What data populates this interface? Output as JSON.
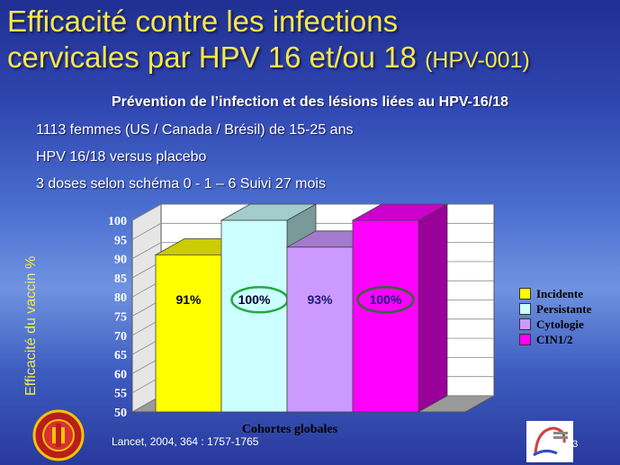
{
  "slide": {
    "title_line1": "Efficacité contre les infections",
    "title_line2": "cervicales par HPV 16 et/ou 18",
    "title_code": "(HPV-001)",
    "subtitle": "Prévention de l’infection et des lésions liées au HPV-16/18",
    "info": [
      "1113 femmes (US / Canada / Brésil) de 15-25 ans",
      "HPV 16/18 versus placebo",
      "3 doses selon schéma 0 - 1 – 6 Suivi 27 mois"
    ],
    "citation": "Lancet, 2004, 364 : 1757-1765",
    "page_number": "23"
  },
  "chart_data": {
    "type": "bar",
    "ylabel": "Efficacité du vaccin %",
    "xlabel": "Cohortes globales",
    "ylim": [
      50,
      100
    ],
    "yticks": [
      "50",
      "55",
      "60",
      "65",
      "70",
      "75",
      "80",
      "85",
      "90",
      "95",
      "100"
    ],
    "series": [
      {
        "name": "Incidente",
        "value": 91,
        "label": "91%",
        "color": "#ffff00",
        "circled": false
      },
      {
        "name": "Persistante",
        "value": 100,
        "label": "100%",
        "color": "#ccffff",
        "circled": true
      },
      {
        "name": "Cytologie",
        "value": 93,
        "label": "93%",
        "color": "#cc99ff",
        "circled": false
      },
      {
        "name": "CIN1/2",
        "value": 100,
        "label": "100%",
        "color": "#ff00ff",
        "circled": true
      }
    ],
    "legend_position": "right"
  }
}
